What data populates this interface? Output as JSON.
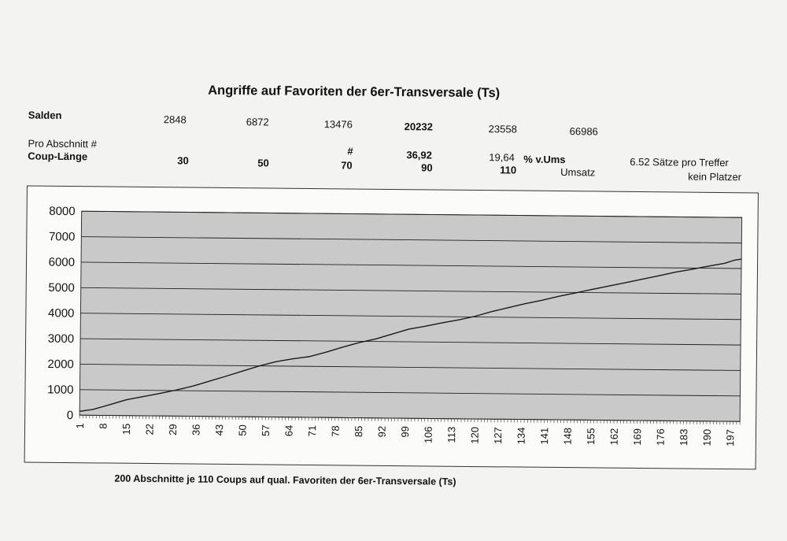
{
  "title": "Angriffe auf Favoriten der 6er-Transversale (Ts)",
  "rows": {
    "salden": {
      "label": "Salden",
      "values": [
        "2848",
        "6872",
        "13476",
        "20232",
        "23558",
        "66986"
      ]
    },
    "pro_abschnitt": {
      "label": "Pro Abschnitt #",
      "hash": "#",
      "v1": "36,92",
      "v2": "19,64",
      "unit": "% v.Ums"
    },
    "coup_laenge": {
      "label": "Coup-Länge",
      "values": [
        "30",
        "50",
        "70",
        "90",
        "110"
      ],
      "umsatz": "Umsatz"
    },
    "saetze": "6.52 Sätze pro Treffer",
    "platzer": "kein Platzer"
  },
  "footer": "200 Abschnitte je 110 Coups auf qual. Favoriten der 6er-Transversale  (Ts)",
  "colors": {
    "plot_bg": "#c9c9c9",
    "line": "#1a1a1a",
    "grid": "#222222"
  },
  "chart_data": {
    "type": "line",
    "title": "",
    "xlabel": "200 Abschnitte je 110 Coups auf qual. Favoriten der 6er-Transversale  (Ts)",
    "ylabel": "",
    "ylim": [
      0,
      8000
    ],
    "y_ticks": [
      0,
      1000,
      2000,
      3000,
      4000,
      5000,
      6000,
      7000,
      8000
    ],
    "x_ticks": [
      1,
      8,
      15,
      22,
      29,
      36,
      43,
      50,
      57,
      64,
      71,
      78,
      85,
      92,
      99,
      106,
      113,
      120,
      127,
      134,
      141,
      148,
      155,
      162,
      169,
      176,
      183,
      190,
      197
    ],
    "xlim": [
      1,
      200
    ],
    "grid": true,
    "legend": "none",
    "series": [
      {
        "x": [
          1,
          5,
          10,
          15,
          20,
          25,
          30,
          35,
          40,
          45,
          50,
          55,
          60,
          65,
          70,
          75,
          80,
          85,
          90,
          95,
          100,
          105,
          110,
          115,
          120,
          125,
          130,
          135,
          140,
          145,
          150,
          155,
          160,
          165,
          170,
          175,
          180,
          185,
          190,
          195,
          198,
          200
        ],
        "values": [
          150,
          230,
          420,
          620,
          750,
          880,
          1020,
          1180,
          1380,
          1580,
          1790,
          2000,
          2170,
          2290,
          2380,
          2560,
          2760,
          2950,
          3100,
          3300,
          3500,
          3620,
          3760,
          3880,
          4030,
          4220,
          4380,
          4540,
          4680,
          4840,
          4980,
          5120,
          5260,
          5400,
          5540,
          5680,
          5830,
          5950,
          6080,
          6200,
          6330,
          6370
        ]
      }
    ]
  }
}
